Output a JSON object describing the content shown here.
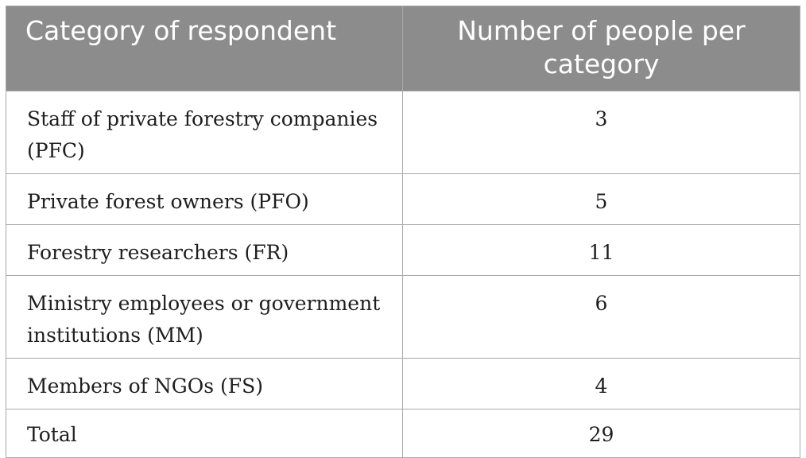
{
  "table": {
    "headers": [
      "Category of respondent",
      "Number of people per category"
    ],
    "rows": [
      {
        "category": "Staff of private forestry companies (PFC)",
        "count": "3"
      },
      {
        "category": "Private forest owners (PFO)",
        "count": "5"
      },
      {
        "category": "Forestry researchers (FR)",
        "count": "11"
      },
      {
        "category": "Ministry employees or government institutions (MM)",
        "count": "6"
      },
      {
        "category": "Members of NGOs (FS)",
        "count": "4"
      },
      {
        "category": "Total",
        "count": "29"
      }
    ]
  }
}
